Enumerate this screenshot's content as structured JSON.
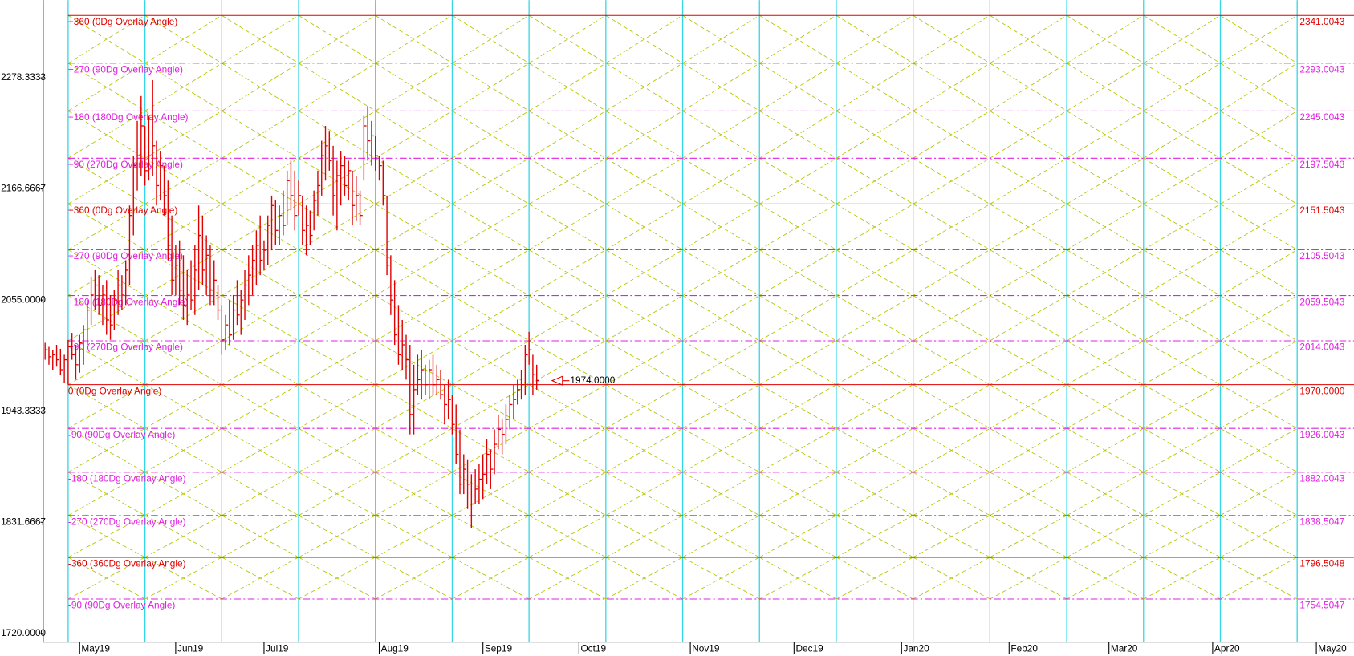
{
  "chart_data": {
    "type": "ohlc",
    "x": [
      0,
      1,
      2,
      3,
      4,
      5,
      6,
      7,
      8,
      9,
      10,
      11,
      12,
      13,
      14,
      15,
      16,
      17,
      18,
      19,
      20,
      21,
      22,
      23,
      24,
      25,
      26,
      27,
      28,
      29,
      30,
      31,
      32,
      33,
      34,
      35,
      36,
      37,
      38,
      39,
      40,
      41,
      42,
      43,
      44,
      45,
      46,
      47,
      48,
      49,
      50,
      51,
      52,
      53,
      54,
      55,
      56,
      57,
      58,
      59,
      60,
      61,
      62,
      63,
      64,
      65,
      66,
      67,
      68,
      69,
      70,
      71,
      72,
      73,
      74,
      75,
      76,
      77,
      78,
      79,
      80,
      81,
      82,
      83,
      84,
      85,
      86,
      87,
      88,
      89,
      90,
      91,
      92,
      93,
      94,
      95,
      96,
      97,
      98,
      99,
      100,
      101,
      102,
      103,
      104,
      105,
      106,
      107,
      108,
      109,
      110,
      111,
      112,
      113,
      114,
      115,
      116,
      117,
      118,
      119,
      120,
      121,
      122,
      123,
      124,
      125,
      126,
      127,
      128
    ],
    "high": [
      2012,
      2008,
      2005,
      2010,
      2006,
      2000,
      2015,
      2022,
      2010,
      2020,
      2030,
      2055,
      2078,
      2085,
      2080,
      2070,
      2075,
      2060,
      2065,
      2085,
      2080,
      2095,
      2150,
      2200,
      2235,
      2260,
      2230,
      2240,
      2276,
      2215,
      2205,
      2190,
      2175,
      2140,
      2110,
      2115,
      2100,
      2085,
      2095,
      2110,
      2150,
      2140,
      2120,
      2110,
      2095,
      2070,
      2050,
      2040,
      2055,
      2060,
      2075,
      2065,
      2085,
      2100,
      2110,
      2125,
      2140,
      2115,
      2140,
      2160,
      2155,
      2150,
      2165,
      2185,
      2195,
      2185,
      2175,
      2160,
      2150,
      2145,
      2165,
      2185,
      2215,
      2230,
      2225,
      2210,
      2195,
      2205,
      2200,
      2195,
      2185,
      2180,
      2165,
      2240,
      2250,
      2235,
      2220,
      2200,
      2195,
      2160,
      2100,
      2075,
      2050,
      2035,
      2020,
      2010,
      1990,
      2000,
      2005,
      1990,
      1995,
      2000,
      1990,
      1985,
      1970,
      1975,
      1960,
      1950,
      1925,
      1900,
      1895,
      1880,
      1885,
      1890,
      1900,
      1915,
      1905,
      1925,
      1940,
      1935,
      1950,
      1960,
      1970,
      1975,
      1985,
      2010,
      2023,
      2000,
      1990
    ],
    "low": [
      1995,
      1990,
      1985,
      1988,
      1980,
      1972,
      1970,
      1995,
      1975,
      1982,
      1990,
      2010,
      2030,
      2045,
      2040,
      2030,
      2020,
      2015,
      2025,
      2040,
      2045,
      2050,
      2070,
      2120,
      2165,
      2180,
      2170,
      2175,
      2180,
      2150,
      2155,
      2140,
      2095,
      2060,
      2060,
      2050,
      2035,
      2030,
      2045,
      2040,
      2065,
      2070,
      2060,
      2050,
      2050,
      2035,
      2000,
      2005,
      2010,
      2015,
      2030,
      2020,
      2035,
      2050,
      2060,
      2070,
      2080,
      2085,
      2090,
      2105,
      2110,
      2110,
      2120,
      2130,
      2145,
      2125,
      2140,
      2110,
      2100,
      2110,
      2125,
      2140,
      2160,
      2175,
      2185,
      2140,
      2125,
      2150,
      2160,
      2155,
      2130,
      2135,
      2130,
      2175,
      2195,
      2190,
      2185,
      2175,
      2150,
      2080,
      2040,
      2010,
      1990,
      1985,
      1975,
      1920,
      1920,
      1960,
      1955,
      1960,
      1955,
      1960,
      1960,
      1955,
      1930,
      1935,
      1920,
      1890,
      1860,
      1860,
      1845,
      1826,
      1850,
      1850,
      1855,
      1870,
      1865,
      1880,
      1905,
      1900,
      1910,
      1925,
      1935,
      1950,
      1955,
      1960,
      1990,
      1960,
      1965
    ],
    "close": [
      2005,
      1998,
      2000,
      1995,
      1985,
      1995,
      2008,
      2000,
      1990,
      2012,
      2025,
      2045,
      2060,
      2070,
      2050,
      2060,
      2035,
      2030,
      2055,
      2070,
      2060,
      2085,
      2140,
      2190,
      2200,
      2230,
      2185,
      2200,
      2210,
      2170,
      2190,
      2160,
      2110,
      2075,
      2090,
      2065,
      2050,
      2060,
      2055,
      2085,
      2120,
      2085,
      2100,
      2065,
      2075,
      2045,
      2015,
      2030,
      2020,
      2045,
      2040,
      2055,
      2070,
      2080,
      2095,
      2110,
      2095,
      2105,
      2130,
      2150,
      2125,
      2140,
      2130,
      2175,
      2160,
      2140,
      2160,
      2125,
      2130,
      2120,
      2155,
      2170,
      2200,
      2210,
      2195,
      2160,
      2180,
      2190,
      2170,
      2185,
      2150,
      2160,
      2140,
      2230,
      2215,
      2220,
      2200,
      2190,
      2160,
      2090,
      2055,
      2020,
      2000,
      2010,
      1995,
      1940,
      1965,
      1975,
      1985,
      1970,
      1985,
      1970,
      1975,
      1960,
      1950,
      1955,
      1930,
      1900,
      1870,
      1885,
      1870,
      1850,
      1865,
      1875,
      1880,
      1900,
      1885,
      1910,
      1925,
      1920,
      1935,
      1950,
      1955,
      1965,
      1970,
      2000,
      2005,
      1980,
      1974
    ],
    "color": "#e00000",
    "xlim": [
      -0.5,
      340.8
    ],
    "xticks": [
      {
        "value": 9,
        "label": "May19"
      },
      {
        "value": 34,
        "label": "Jun19"
      },
      {
        "value": 57,
        "label": "Jul19"
      },
      {
        "value": 87,
        "label": "Aug19"
      },
      {
        "value": 114,
        "label": "Sep19"
      },
      {
        "value": 139,
        "label": "Oct19"
      },
      {
        "value": 168,
        "label": "Nov19"
      },
      {
        "value": 195,
        "label": "Dec19"
      },
      {
        "value": 223,
        "label": "Jan20"
      },
      {
        "value": 251,
        "label": "Feb20"
      },
      {
        "value": 277,
        "label": "Mar20"
      },
      {
        "value": 304,
        "label": "Apr20"
      },
      {
        "value": 331,
        "label": "May20"
      }
    ],
    "ylim": [
      1711.3,
      2356.4
    ],
    "yticks": [
      {
        "value": 2278.3333,
        "label": "2278.3333"
      },
      {
        "value": 2166.6667,
        "label": "2166.6667"
      },
      {
        "value": 2055,
        "label": "2055.0000"
      },
      {
        "value": 1943.3333,
        "label": "1943.3333"
      },
      {
        "value": 1831.6667,
        "label": "1831.6667"
      },
      {
        "value": 1720,
        "label": "1720.0000"
      }
    ],
    "cycle_lines": [
      6,
      26,
      46,
      66,
      86,
      106,
      126,
      146,
      166,
      186,
      206,
      226,
      246,
      266,
      286,
      306,
      326
    ],
    "cycle_color": "#33d6e6",
    "angle_color": "#b4c400",
    "levels": {
      "names": [
        "+360 (0Dg Overlay Angle)",
        "+270 (90Dg Overlay Angle)",
        "+180 (180Dg Overlay Angle)",
        "+90 (270Dg Overlay Angle)",
        "+360 (0Dg Overlay Angle)",
        "+270 (90Dg Overlay Angle)",
        "+180 (180Dg Overlay Angle)",
        "+90 (270Dg Overlay Angle)",
        "0 (0Dg Overlay Angle)",
        "-90 (90Dg Overlay Angle)",
        "-180 (180Dg Overlay Angle)",
        "-270 (270Dg Overlay Angle)",
        "-360 (360Dg Overlay Angle)",
        "-90 (90Dg Overlay Angle)"
      ],
      "values": [
        2341.0043,
        2293.0043,
        2245.0043,
        2197.5043,
        2151.5043,
        2105.5043,
        2059.5043,
        2014.0043,
        1970,
        1926.0043,
        1882.0043,
        1838.5047,
        1796.5048,
        1754.5047
      ],
      "value_labels": [
        "2341.0043",
        "2293.0043",
        "2245.0043",
        "2197.5043",
        "2151.5043",
        "2105.5043",
        "2059.5043",
        "2014.0043",
        "1970.0000",
        "1926.0043",
        "1882.0043",
        "1838.5047",
        "1796.5048",
        "1754.5047"
      ],
      "colors": [
        "#e00000",
        "#e020e0",
        "#e020e0",
        "#e020e0",
        "#e00000",
        "#e020e0",
        "#e020e0",
        "#e020e0",
        "#e00000",
        "#e020e0",
        "#e020e0",
        "#e020e0",
        "#e00000",
        "#e020e0"
      ],
      "dashed": [
        false,
        true,
        true,
        true,
        false,
        true,
        true,
        true,
        false,
        true,
        true,
        true,
        false,
        true
      ]
    },
    "annotation": {
      "x": 132,
      "value": 1974,
      "label": "1974.0000"
    }
  }
}
